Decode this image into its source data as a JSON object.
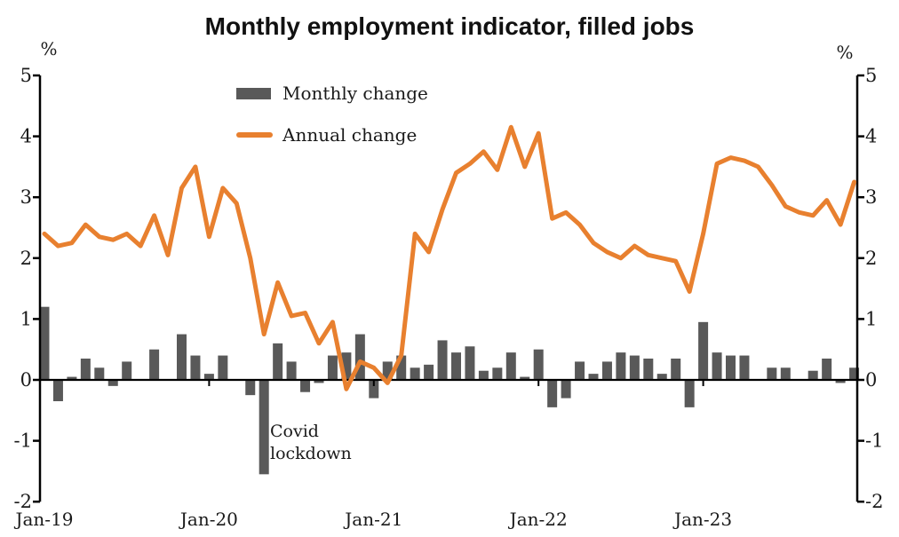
{
  "title": "Monthly employment indicator, filled jobs",
  "legend": [
    {
      "label": "Monthly change",
      "type": "bar",
      "color": "#595959"
    },
    {
      "label": "Annual change",
      "type": "line",
      "color": "#e8802f"
    }
  ],
  "annotation": {
    "line1": "Covid",
    "line2": "lockdown"
  },
  "y_axis": {
    "unit_label": "%",
    "ticks": [
      5,
      4,
      3,
      2,
      1,
      0,
      -1,
      -2
    ],
    "min": -2,
    "max": 5
  },
  "x_axis": {
    "year_tick_labels": [
      "Jan-19",
      "Jan-20",
      "Jan-21",
      "Jan-22",
      "Jan-23"
    ]
  },
  "colors": {
    "bar": "#595959",
    "line": "#e8802f",
    "axis": "#000000",
    "zero_line": "#000000"
  },
  "chart_data": {
    "type": "combo-bar-line",
    "title": "Monthly employment indicator, filled jobs",
    "ylabel": "%",
    "ylim": [
      -2,
      5
    ],
    "grid": false,
    "legend_position": "top-left-inside",
    "x": [
      "Jan-19",
      "Feb-19",
      "Mar-19",
      "Apr-19",
      "May-19",
      "Jun-19",
      "Jul-19",
      "Aug-19",
      "Sep-19",
      "Oct-19",
      "Nov-19",
      "Dec-19",
      "Jan-20",
      "Feb-20",
      "Mar-20",
      "Apr-20",
      "May-20",
      "Jun-20",
      "Jul-20",
      "Aug-20",
      "Sep-20",
      "Oct-20",
      "Nov-20",
      "Dec-20",
      "Jan-21",
      "Feb-21",
      "Mar-21",
      "Apr-21",
      "May-21",
      "Jun-21",
      "Jul-21",
      "Aug-21",
      "Sep-21",
      "Oct-21",
      "Nov-21",
      "Dec-21",
      "Jan-22",
      "Feb-22",
      "Mar-22",
      "Apr-22",
      "May-22",
      "Jun-22",
      "Jul-22",
      "Aug-22",
      "Sep-22",
      "Oct-22",
      "Nov-22",
      "Dec-22",
      "Jan-23",
      "Feb-23",
      "Mar-23",
      "Apr-23",
      "May-23",
      "Jun-23",
      "Jul-23",
      "Aug-23",
      "Sep-23",
      "Oct-23",
      "Nov-23",
      "Dec-23"
    ],
    "series": [
      {
        "name": "Monthly change",
        "type": "bar",
        "color": "#595959",
        "values": [
          1.2,
          -0.35,
          0.05,
          0.35,
          0.2,
          -0.1,
          0.3,
          0.0,
          0.5,
          0.0,
          0.75,
          0.4,
          0.1,
          0.4,
          0.0,
          -0.25,
          -1.55,
          0.6,
          0.3,
          -0.2,
          -0.05,
          0.4,
          0.45,
          0.75,
          -0.3,
          0.3,
          0.4,
          0.2,
          0.25,
          0.65,
          0.45,
          0.55,
          0.15,
          0.2,
          0.45,
          0.05,
          0.5,
          -0.45,
          -0.3,
          0.3,
          0.1,
          0.3,
          0.45,
          0.4,
          0.35,
          0.1,
          0.35,
          -0.45,
          0.95,
          0.45,
          0.4,
          0.4,
          0.0,
          0.2,
          0.2,
          0.0,
          0.15,
          0.35,
          -0.05,
          0.2
        ]
      },
      {
        "name": "Annual change",
        "type": "line",
        "color": "#e8802f",
        "values": [
          2.4,
          2.2,
          2.25,
          2.55,
          2.35,
          2.3,
          2.4,
          2.2,
          2.7,
          2.05,
          3.15,
          3.5,
          2.35,
          3.15,
          2.9,
          2.0,
          0.75,
          1.6,
          1.05,
          1.1,
          0.6,
          0.95,
          -0.15,
          0.3,
          0.2,
          -0.05,
          0.4,
          2.4,
          2.1,
          2.8,
          3.4,
          3.55,
          3.75,
          3.45,
          4.15,
          3.5,
          4.05,
          2.65,
          2.75,
          2.55,
          2.25,
          2.1,
          2.0,
          2.2,
          2.05,
          2.0,
          1.95,
          1.45,
          2.4,
          3.55,
          3.65,
          3.6,
          3.5,
          3.2,
          2.85,
          2.75,
          2.7,
          2.95,
          2.55,
          3.25
        ]
      }
    ],
    "annotation": {
      "text": "Covid lockdown",
      "attached_to": "May-20"
    }
  }
}
